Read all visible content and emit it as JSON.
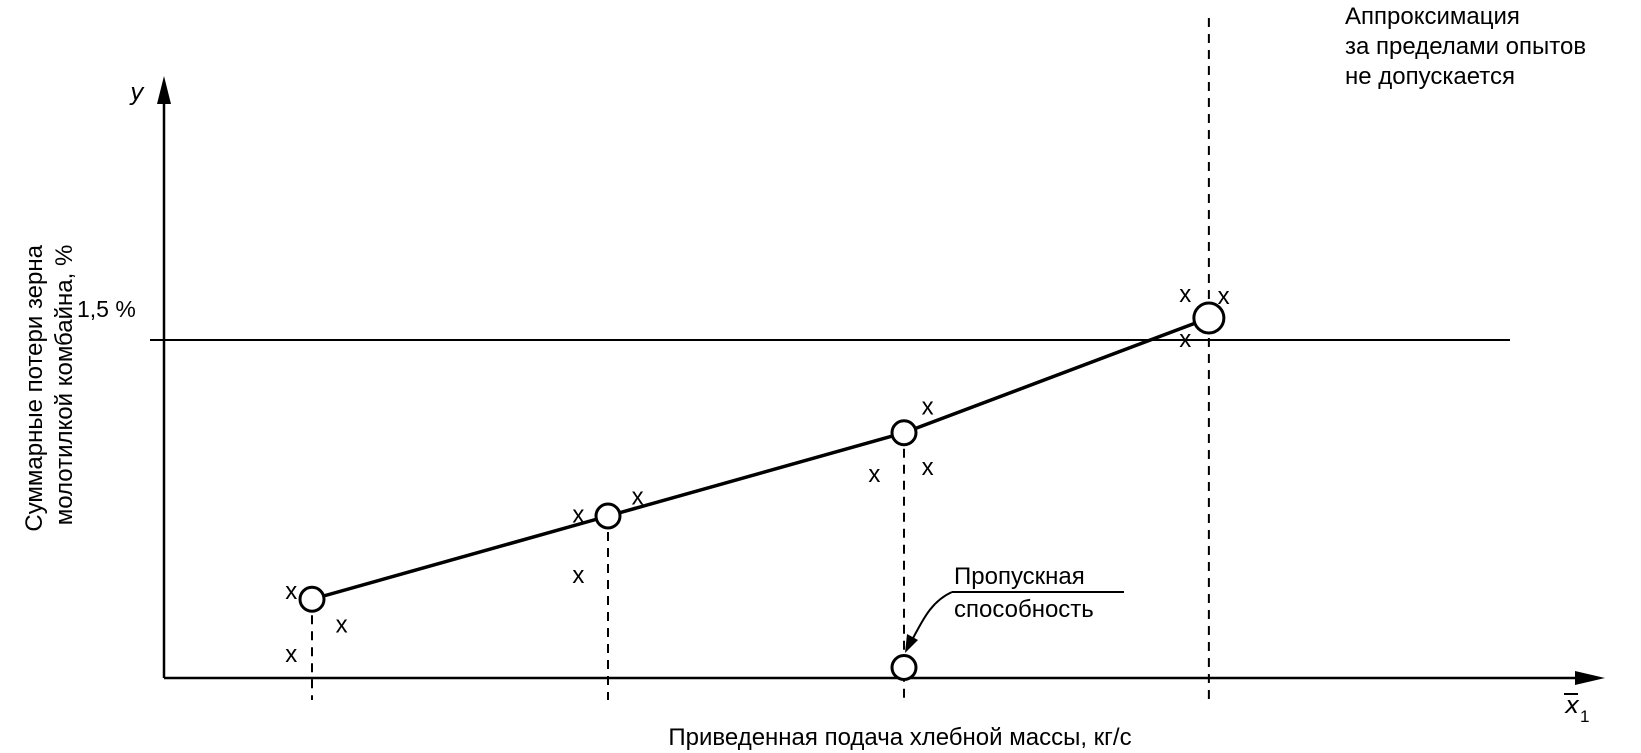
{
  "chart_data": {
    "type": "line",
    "x_label": "Приведенная подача хлебной массы, кг/с",
    "x_symbol": "x",
    "x_symbol_sub": "1",
    "y_label_lines": [
      "Суммарные потери зерна",
      "молотилкой комбайна,  %"
    ],
    "y_symbol": "y",
    "threshold": {
      "label": "1,5 %",
      "y": 1.5
    },
    "x_range": [
      0,
      5
    ],
    "y_range": [
      0,
      3
    ],
    "fit_points": [
      {
        "x": 0.5,
        "y": 0.35
      },
      {
        "x": 1.5,
        "y": 0.72
      },
      {
        "x": 2.5,
        "y": 1.09
      },
      {
        "x": 3.53,
        "y": 1.6
      }
    ],
    "observations": [
      {
        "x": 0.43,
        "y": 0.38,
        "label": "x"
      },
      {
        "x": 0.6,
        "y": 0.23,
        "label": "x"
      },
      {
        "x": 0.43,
        "y": 0.1,
        "label": "x"
      },
      {
        "x": 1.4,
        "y": 0.72,
        "label": "x"
      },
      {
        "x": 1.6,
        "y": 0.8,
        "label": "x"
      },
      {
        "x": 1.4,
        "y": 0.45,
        "label": "x"
      },
      {
        "x": 2.4,
        "y": 0.9,
        "label": "x"
      },
      {
        "x": 2.58,
        "y": 0.93,
        "label": "x"
      },
      {
        "x": 2.58,
        "y": 1.2,
        "label": "x"
      },
      {
        "x": 3.45,
        "y": 1.7,
        "label": "x"
      },
      {
        "x": 3.45,
        "y": 1.5,
        "label": "x"
      },
      {
        "x": 3.58,
        "y": 1.69,
        "label": "x"
      }
    ],
    "vertical_markers": [
      {
        "x": 0.5,
        "style": "dashed"
      },
      {
        "x": 1.5,
        "style": "dashed"
      },
      {
        "x": 2.5,
        "style": "dashed"
      },
      {
        "x": 3.53,
        "style": "dashed"
      }
    ],
    "capacity_point": {
      "x": 2.5,
      "y": 0.02
    },
    "annotations": {
      "capacity": [
        "Пропускная",
        "способность"
      ],
      "extrapolation": [
        "Аппроксимация",
        "за пределами опытов",
        "не допускается"
      ]
    }
  }
}
